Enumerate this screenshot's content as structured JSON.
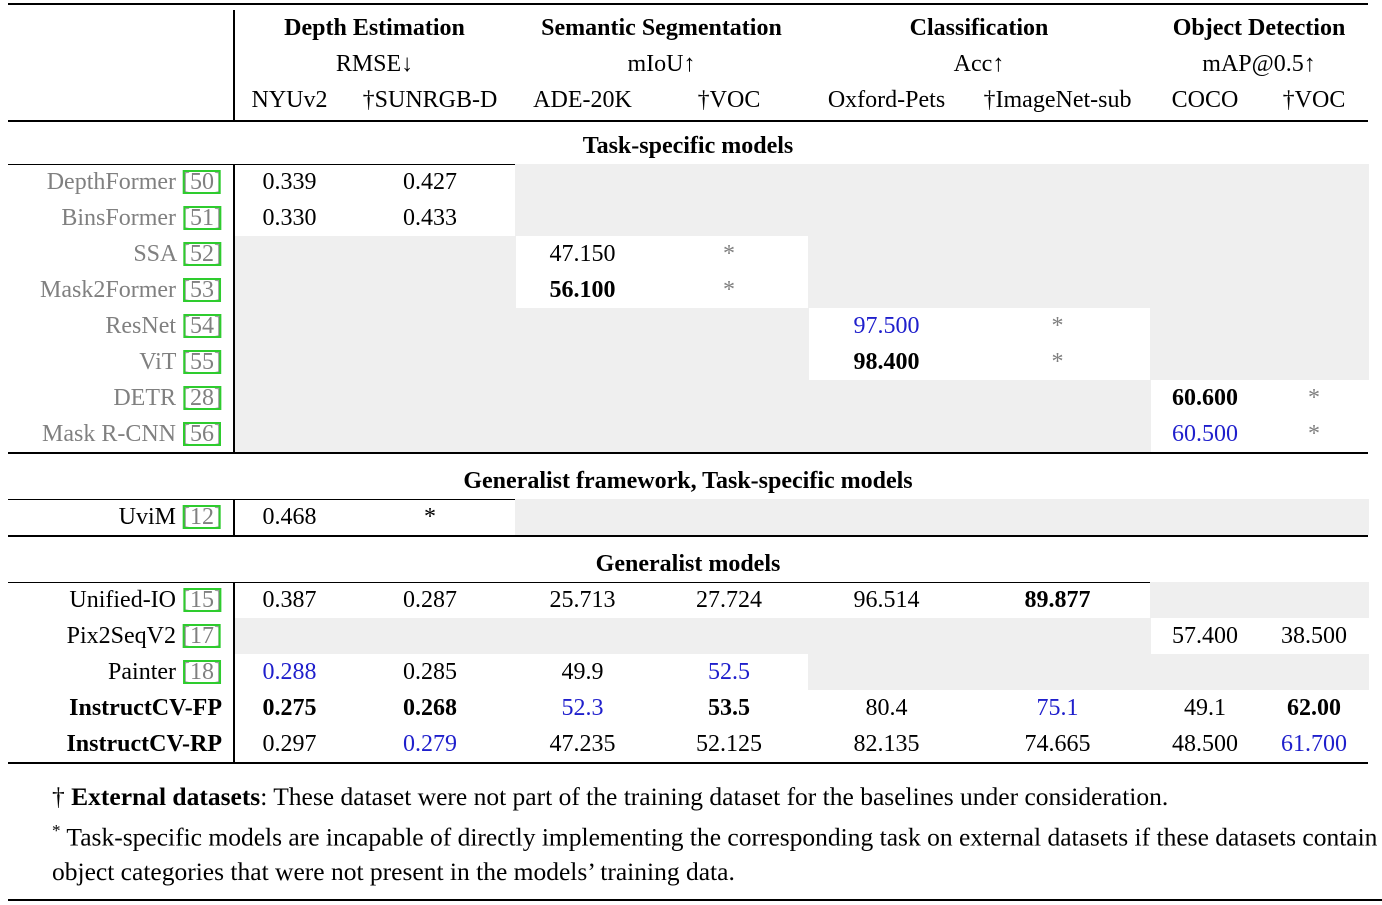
{
  "header": {
    "groups": [
      {
        "title": "Depth Estimation",
        "metric": "RMSE↓"
      },
      {
        "title": "Semantic Segmentation",
        "metric": "mIoU↑"
      },
      {
        "title": "Classification",
        "metric": "Acc↑"
      },
      {
        "title": "Object Detection",
        "metric": "mAP@0.5↑"
      }
    ],
    "datasets": [
      "NYUv2",
      "†SUNRGB-D",
      "ADE-20K",
      "†VOC",
      "Oxford-Pets",
      "†ImageNet-sub",
      "COCO",
      "†VOC"
    ]
  },
  "sections": [
    {
      "title": "Task-specific models",
      "rows": [
        {
          "model": "DepthFormer",
          "ref": "[50]",
          "model_color": "#808080",
          "cells": [
            {
              "text": "0.339"
            },
            {
              "text": "0.427"
            },
            null,
            null,
            null,
            null,
            null,
            null
          ]
        },
        {
          "model": "BinsFormer",
          "ref": "[51]",
          "model_color": "#808080",
          "cells": [
            {
              "text": "0.330"
            },
            {
              "text": "0.433"
            },
            null,
            null,
            null,
            null,
            null,
            null
          ]
        },
        {
          "model": "SSA",
          "ref": "[52]",
          "model_color": "#808080",
          "cells": [
            null,
            null,
            {
              "text": "47.150"
            },
            {
              "text": "*",
              "color": "#808080"
            },
            null,
            null,
            null,
            null
          ]
        },
        {
          "model": "Mask2Former",
          "ref": "[53]",
          "model_color": "#808080",
          "cells": [
            null,
            null,
            {
              "text": "56.100",
              "bold": true
            },
            {
              "text": "*",
              "color": "#808080"
            },
            null,
            null,
            null,
            null
          ]
        },
        {
          "model": "ResNet",
          "ref": "[54]",
          "model_color": "#808080",
          "cells": [
            null,
            null,
            null,
            null,
            {
              "text": "97.500",
              "color": "#1f1fcc"
            },
            {
              "text": "*",
              "color": "#808080"
            },
            null,
            null
          ]
        },
        {
          "model": "ViT",
          "ref": "[55]",
          "model_color": "#808080",
          "cells": [
            null,
            null,
            null,
            null,
            {
              "text": "98.400",
              "bold": true
            },
            {
              "text": "*",
              "color": "#808080"
            },
            null,
            null
          ]
        },
        {
          "model": "DETR",
          "ref": "[28]",
          "model_color": "#808080",
          "cells": [
            null,
            null,
            null,
            null,
            null,
            null,
            {
              "text": "60.600",
              "bold": true
            },
            {
              "text": "*",
              "color": "#808080"
            }
          ]
        },
        {
          "model": "Mask R-CNN",
          "ref": "[56]",
          "model_color": "#808080",
          "cells": [
            null,
            null,
            null,
            null,
            null,
            null,
            {
              "text": "60.500",
              "color": "#1f1fcc"
            },
            {
              "text": "*",
              "color": "#808080"
            }
          ]
        }
      ]
    },
    {
      "title": "Generalist framework, Task-specific models",
      "rows": [
        {
          "model": "UviM",
          "ref": "[12]",
          "model_color": "#000000",
          "cells": [
            {
              "text": "0.468"
            },
            {
              "text": "*"
            },
            null,
            null,
            null,
            null,
            null,
            null
          ]
        }
      ]
    },
    {
      "title": "Generalist models",
      "rows": [
        {
          "model": "Unified-IO",
          "ref": "[15]",
          "model_color": "#000000",
          "cells": [
            {
              "text": "0.387"
            },
            {
              "text": "0.287"
            },
            {
              "text": "25.713"
            },
            {
              "text": "27.724"
            },
            {
              "text": "96.514"
            },
            {
              "text": "89.877",
              "bold": true
            },
            null,
            null
          ]
        },
        {
          "model": "Pix2SeqV2",
          "ref": "[17]",
          "model_color": "#000000",
          "cells": [
            null,
            null,
            null,
            null,
            null,
            null,
            {
              "text": "57.400"
            },
            {
              "text": "38.500"
            }
          ]
        },
        {
          "model": "Painter",
          "ref": "[18]",
          "model_color": "#000000",
          "cells": [
            {
              "text": "0.288",
              "color": "#1f1fcc"
            },
            {
              "text": "0.285"
            },
            {
              "text": "49.9"
            },
            {
              "text": "52.5",
              "color": "#1f1fcc"
            },
            null,
            null,
            null,
            null
          ]
        },
        {
          "model": "InstructCV-FP",
          "model_bold": true,
          "model_color": "#000000",
          "cells": [
            {
              "text": "0.275",
              "bold": true
            },
            {
              "text": "0.268",
              "bold": true
            },
            {
              "text": "52.3",
              "color": "#1f1fcc"
            },
            {
              "text": "53.5",
              "bold": true
            },
            {
              "text": "80.4"
            },
            {
              "text": "75.1",
              "color": "#1f1fcc"
            },
            {
              "text": "49.1"
            },
            {
              "text": "62.00",
              "bold": true
            }
          ]
        },
        {
          "model": "InstructCV-RP",
          "model_bold": true,
          "model_color": "#000000",
          "cells": [
            {
              "text": "0.297"
            },
            {
              "text": "0.279",
              "color": "#1f1fcc"
            },
            {
              "text": "47.235"
            },
            {
              "text": "52.125"
            },
            {
              "text": "82.135"
            },
            {
              "text": "74.665"
            },
            {
              "text": "48.500"
            },
            {
              "text": "61.700",
              "color": "#1f1fcc"
            }
          ]
        }
      ]
    }
  ],
  "footnotes": [
    {
      "mark": "†",
      "bold": "External datasets",
      "text": ": These dataset were not part of the training dataset for the baselines under consideration."
    },
    {
      "mark": "*",
      "text": "Task-specific models are incapable of directly implementing the corresponding task on external datasets if these datasets contain object categories that were not present in the models’ training data."
    }
  ]
}
